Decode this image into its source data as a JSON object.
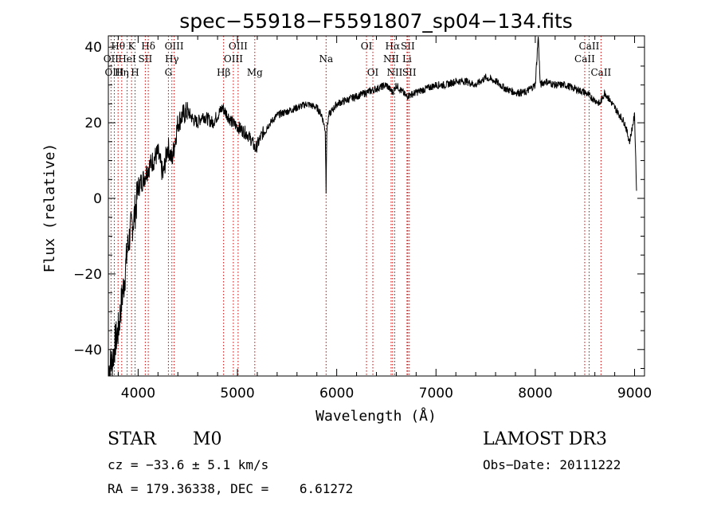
{
  "chart_data": {
    "type": "line",
    "title": "spec−55918−F5591807_sp04−134.fits",
    "xlabel": "Wavelength (Å)",
    "ylabel": "Flux (relative)",
    "xlim": [
      3700,
      9100
    ],
    "ylim": [
      -47,
      43
    ],
    "xticks": [
      4000,
      5000,
      6000,
      7000,
      8000,
      9000
    ],
    "yticks": [
      -40,
      -20,
      0,
      20,
      40
    ],
    "series": [
      {
        "name": "flux",
        "x": [
          3700,
          3740,
          3770,
          3800,
          3830,
          3860,
          3890,
          3920,
          3950,
          3980,
          4000,
          4050,
          4100,
          4150,
          4200,
          4250,
          4300,
          4340,
          4400,
          4450,
          4500,
          4550,
          4600,
          4650,
          4700,
          4750,
          4800,
          4850,
          4900,
          4950,
          5000,
          5050,
          5100,
          5150,
          5180,
          5250,
          5300,
          5400,
          5500,
          5600,
          5700,
          5800,
          5850,
          5885,
          5893,
          5900,
          5920,
          6000,
          6100,
          6200,
          6300,
          6400,
          6500,
          6563,
          6600,
          6700,
          6800,
          6900,
          7000,
          7100,
          7200,
          7300,
          7400,
          7500,
          7600,
          7700,
          7800,
          7900,
          8000,
          8030,
          8050,
          8100,
          8200,
          8300,
          8400,
          8500,
          8550,
          8600,
          8650,
          8700,
          8750,
          8800,
          8850,
          8900,
          8950,
          9000,
          9020
        ],
        "y": [
          -45,
          -43,
          -38,
          -35,
          -28,
          -22,
          -14,
          -9,
          -6,
          -2,
          3,
          5,
          8,
          10,
          12,
          6,
          14,
          10,
          20,
          22,
          23,
          21,
          20,
          22,
          21,
          20,
          22,
          24,
          22,
          20,
          19,
          18,
          17,
          15,
          13,
          17,
          19,
          22,
          23,
          24,
          25,
          24,
          22,
          18,
          2,
          18,
          22,
          25,
          26,
          27,
          28,
          29,
          30,
          28,
          30,
          27,
          28,
          29,
          30,
          30,
          31,
          31,
          30,
          32,
          31,
          29,
          28,
          28,
          30,
          43,
          30,
          31,
          30,
          30,
          29,
          28,
          27,
          26,
          25,
          28,
          26,
          24,
          22,
          20,
          15,
          22,
          2
        ]
      }
    ],
    "emission_lines": [
      {
        "name": "Hθ",
        "x": 3798,
        "row": 1
      },
      {
        "name": "OII",
        "x": 3727,
        "row": 2
      },
      {
        "name": "OIII",
        "x": 3760,
        "row": 3
      },
      {
        "name": "K",
        "x": 3934,
        "row": 1
      },
      {
        "name": "HeI",
        "x": 3889,
        "row": 2
      },
      {
        "name": "Hη",
        "x": 3835,
        "row": 3
      },
      {
        "name": "Hδ",
        "x": 4102,
        "row": 1
      },
      {
        "name": "SII",
        "x": 4072,
        "row": 2
      },
      {
        "name": "H",
        "x": 3969,
        "row": 3
      },
      {
        "name": "OIII",
        "x": 4363,
        "row": 1
      },
      {
        "name": "Hγ",
        "x": 4340,
        "row": 2
      },
      {
        "name": "G",
        "x": 4305,
        "row": 3
      },
      {
        "name": "OIII",
        "x": 5007,
        "row": 1
      },
      {
        "name": "OIII",
        "x": 4959,
        "row": 2
      },
      {
        "name": "Hβ",
        "x": 4861,
        "row": 3
      },
      {
        "name": "Mg",
        "x": 5175,
        "row": 3
      },
      {
        "name": "Na",
        "x": 5893,
        "row": 2
      },
      {
        "name": "OI",
        "x": 6300,
        "row": 1
      },
      {
        "name": "OI",
        "x": 6364,
        "row": 3
      },
      {
        "name": "Hα",
        "x": 6563,
        "row": 1
      },
      {
        "name": "SII",
        "x": 6716,
        "row": 1
      },
      {
        "name": "NII",
        "x": 6548,
        "row": 2
      },
      {
        "name": "Li",
        "x": 6708,
        "row": 2
      },
      {
        "name": "NII",
        "x": 6584,
        "row": 3
      },
      {
        "name": "SII",
        "x": 6731,
        "row": 3
      },
      {
        "name": "CaII",
        "x": 8542,
        "row": 1
      },
      {
        "name": "CaII",
        "x": 8498,
        "row": 2
      },
      {
        "name": "CaII",
        "x": 8662,
        "row": 3
      }
    ],
    "grid": false
  },
  "info": {
    "class": "STAR",
    "subclass": "M0",
    "survey": "LAMOST DR3",
    "cz": "cz = −33.6 ± 5.1 km/s",
    "obsdate": "Obs−Date: 20111222",
    "coords": "RA = 179.36338, DEC =    6.61272"
  },
  "colors": {
    "line_marker": "#cc0000",
    "spectrum": "#000000"
  }
}
